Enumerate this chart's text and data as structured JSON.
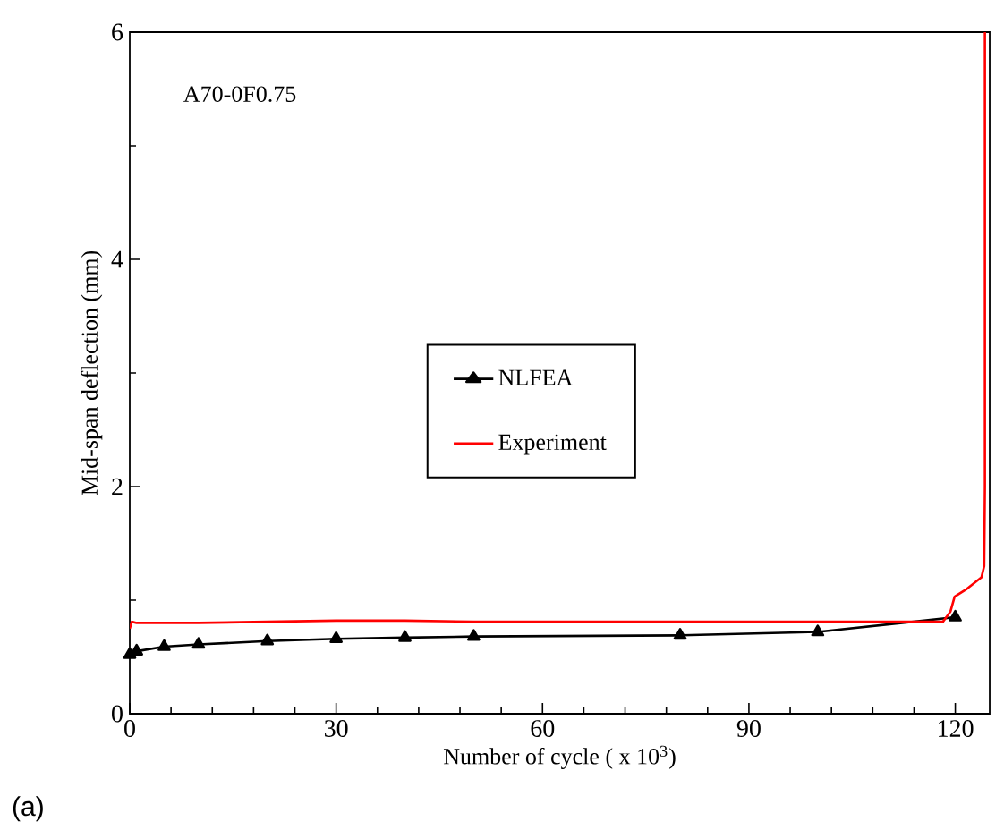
{
  "chart_data": {
    "type": "line",
    "xlabel": "Number of cycle ( x 10$^{3}$)",
    "ylabel": "Mid-span deflection (mm)",
    "annotations": [
      "A70-0F0.75",
      "(a)"
    ],
    "xlim": [
      0,
      125
    ],
    "ylim": [
      0,
      6
    ],
    "xticks": [
      0,
      30,
      60,
      90,
      120
    ],
    "yticks": [
      0,
      2,
      4,
      6
    ],
    "legend": "center",
    "grid": false,
    "series": [
      {
        "name": "NLFEA",
        "color": "#000000",
        "marker": "triangle",
        "x": [
          0,
          1,
          5,
          10,
          20,
          30,
          40,
          50,
          80,
          100,
          120
        ],
        "values": [
          0.52,
          0.55,
          0.59,
          0.61,
          0.64,
          0.66,
          0.67,
          0.68,
          0.69,
          0.72,
          0.85
        ]
      },
      {
        "name": "Experiment",
        "color": "#ff0000",
        "marker": "none",
        "x": [
          0,
          0.3,
          1,
          5,
          10,
          20,
          30,
          40,
          50,
          60,
          80,
          100,
          110,
          118.2,
          119.3,
          119.9,
          121.7,
          123.8,
          124.2,
          124.3,
          124.3
        ],
        "values": [
          0.75,
          0.81,
          0.8,
          0.8,
          0.8,
          0.81,
          0.82,
          0.82,
          0.81,
          0.81,
          0.81,
          0.81,
          0.81,
          0.81,
          0.9,
          1.03,
          1.1,
          1.2,
          1.3,
          2.0,
          6.0
        ]
      }
    ]
  }
}
